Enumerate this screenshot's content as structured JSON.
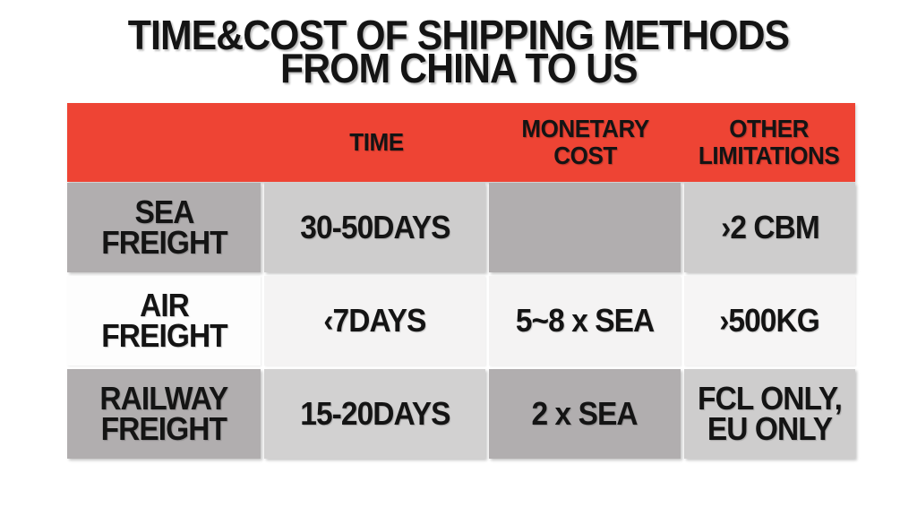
{
  "title": {
    "line1": "TIME&COST OF SHIPPING METHODS",
    "line2": "FROM CHINA TO US"
  },
  "table": {
    "header": {
      "cells": [
        "",
        "TIME",
        "MONETARY\nCOST",
        "OTHER\nLIMITATIONS"
      ]
    },
    "rows": [
      {
        "cells": [
          "SEA\nFREIGHT",
          "30-50DAYS",
          "",
          "›2 CBM"
        ]
      },
      {
        "cells": [
          "AIR\nFREIGHT",
          "‹7DAYS",
          "5~8 x SEA",
          "›500KG"
        ]
      },
      {
        "cells": [
          "RAILWAY\nFREIGHT",
          "15-20DAYS",
          "2 x SEA",
          "FCL ONLY,\nEU ONLY"
        ]
      }
    ]
  },
  "colors": {
    "header_bg": "#ee4434",
    "cell_dark_gray": "#b1aeaf",
    "cell_light_gray": "#cecdcd",
    "cell_white": "#fdfdfd",
    "cell_off_white": "#f4f3f3",
    "text": "#141414",
    "page_bg": "#ffffff"
  },
  "chart_data": {
    "type": "table",
    "title": "TIME&COST OF SHIPPING METHODS FROM CHINA TO US",
    "columns": [
      "",
      "TIME",
      "MONETARY COST",
      "OTHER LIMITATIONS"
    ],
    "rows": [
      [
        "SEA FREIGHT",
        "30-50DAYS",
        "",
        "›2 CBM"
      ],
      [
        "AIR FREIGHT",
        "‹7DAYS",
        "5~8 x SEA",
        "›500KG"
      ],
      [
        "RAILWAY FREIGHT",
        "15-20DAYS",
        "2 x SEA",
        "FCL ONLY, EU ONLY"
      ]
    ]
  }
}
